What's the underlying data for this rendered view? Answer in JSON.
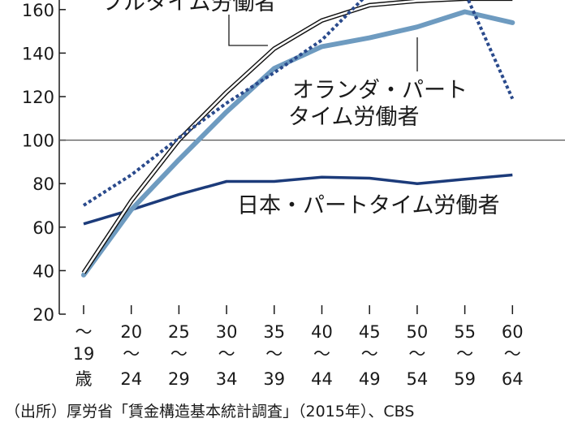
{
  "chart_data": {
    "type": "line",
    "title": "",
    "xlabel": "",
    "ylabel": "",
    "categories": [
      {
        "top": "〜",
        "mid": "19",
        "bottom": "歳"
      },
      {
        "top": "20",
        "mid": "〜",
        "bottom": "24"
      },
      {
        "top": "25",
        "mid": "〜",
        "bottom": "29"
      },
      {
        "top": "30",
        "mid": "〜",
        "bottom": "34"
      },
      {
        "top": "35",
        "mid": "〜",
        "bottom": "39"
      },
      {
        "top": "40",
        "mid": "〜",
        "bottom": "44"
      },
      {
        "top": "45",
        "mid": "〜",
        "bottom": "49"
      },
      {
        "top": "50",
        "mid": "〜",
        "bottom": "54"
      },
      {
        "top": "55",
        "mid": "〜",
        "bottom": "59"
      },
      {
        "top": "60",
        "mid": "〜",
        "bottom": "64"
      }
    ],
    "ylim": [
      20,
      160
    ],
    "yticks": [
      20,
      40,
      60,
      80,
      100,
      120,
      140,
      160
    ],
    "reference_line": 100,
    "series": [
      {
        "key": "jp_full",
        "name": "フルタイム労働者",
        "values": [
          39,
          72,
          100,
          122,
          142,
          155,
          162,
          164,
          165,
          165
        ],
        "color": "#111111",
        "style": "double"
      },
      {
        "key": "nl_full",
        "name": "",
        "values": [
          70,
          84,
          101,
          117,
          131,
          146,
          168,
          168,
          168,
          119
        ],
        "color": "#2a4a8c",
        "style": "dotted"
      },
      {
        "key": "nl_part",
        "name": "オランダ・パートタイム労働者",
        "name_lines": [
          "オランダ・パート",
          "タイム労働者"
        ],
        "values": [
          38,
          68,
          91,
          113,
          133,
          143,
          147,
          152,
          159,
          154
        ],
        "color": "#6e9bc0",
        "style": "thick"
      },
      {
        "key": "jp_part",
        "name": "日本・パートタイム労働者",
        "values": [
          61.5,
          68,
          75,
          81,
          81,
          83,
          82.5,
          80,
          82,
          84
        ],
        "color": "#1c3b7a",
        "style": "solid"
      }
    ]
  },
  "source": "（出所）厚労省「賃金構造基本統計調査」（2015年）、CBS"
}
